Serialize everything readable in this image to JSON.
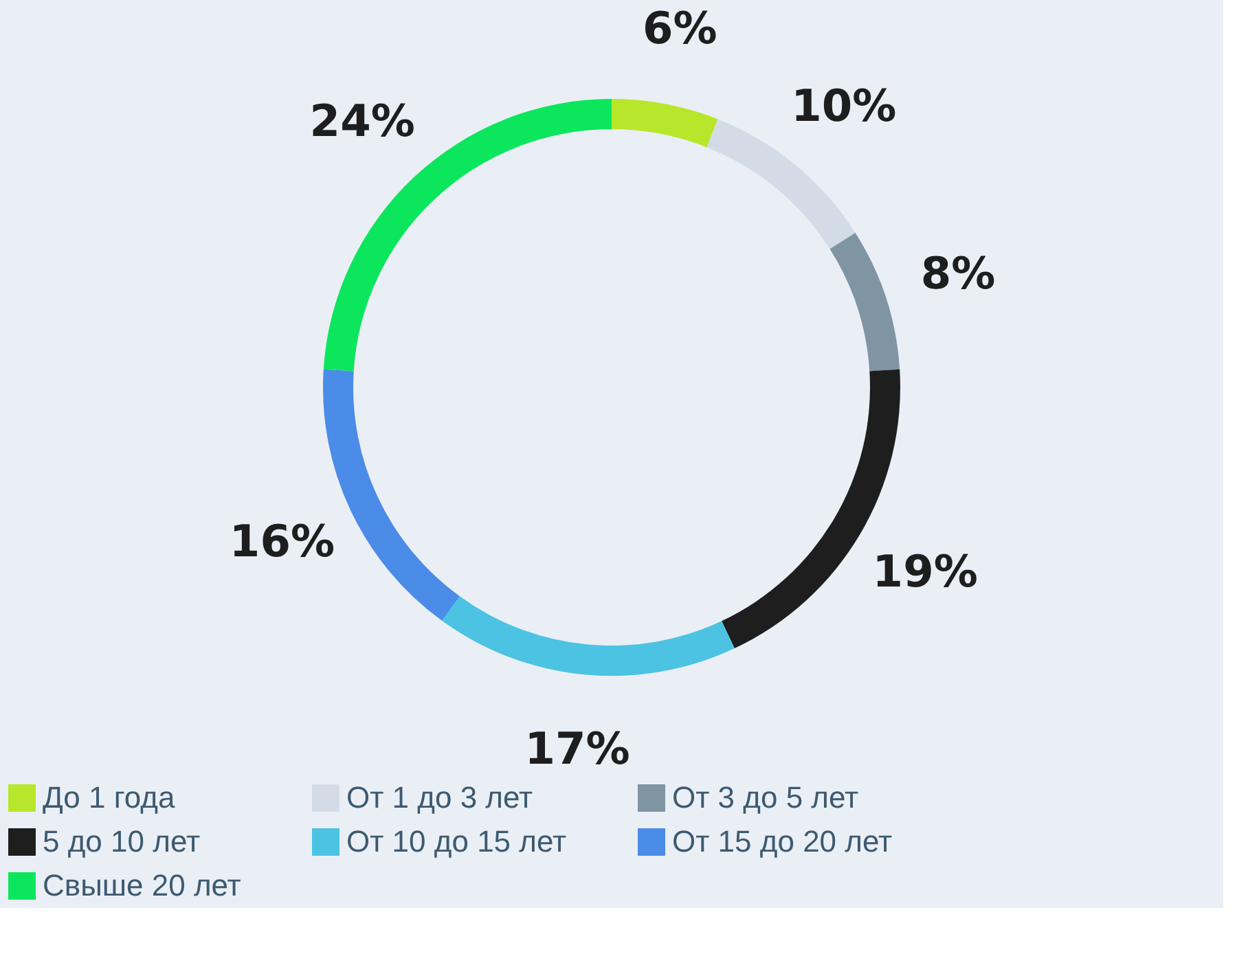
{
  "chart_data": {
    "type": "donut",
    "categories": [
      "До 1 года",
      "От 1 до 3 лет",
      "От 3 до 5 лет",
      "5 до 10 лет",
      "От 10 до 15 лет",
      "От 15 до 20 лет",
      "Свыше 20 лет"
    ],
    "values": [
      6,
      10,
      8,
      19,
      17,
      16,
      24
    ],
    "colors": [
      "#b8e62a",
      "#d3dce6",
      "#7f95a3",
      "#1e1e1e",
      "#4cc3e3",
      "#4a8ce8",
      "#0ce65c"
    ],
    "value_labels": [
      "6%",
      "10%",
      "8%",
      "19%",
      "17%",
      "16%",
      "24%"
    ],
    "legend": "bottom"
  }
}
